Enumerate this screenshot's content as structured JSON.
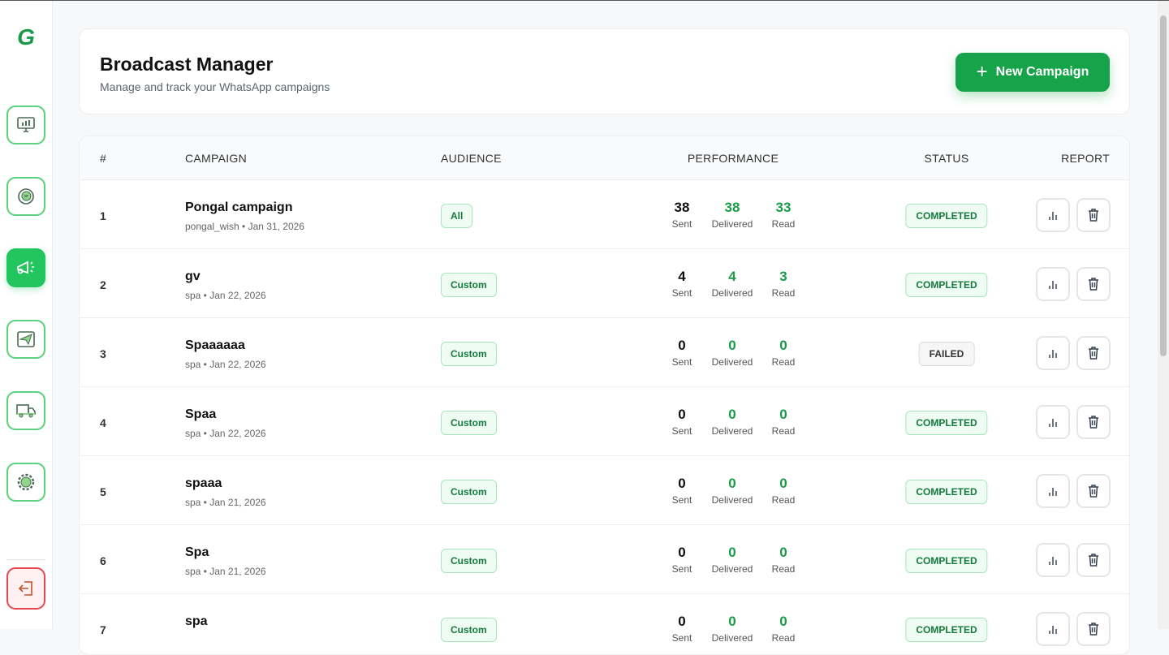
{
  "app": {
    "logo": "G"
  },
  "sidebar": {
    "items": [
      {
        "icon": "dashboard-icon"
      },
      {
        "icon": "chat-icon"
      },
      {
        "icon": "megaphone-icon",
        "active": true
      },
      {
        "icon": "send-icon"
      },
      {
        "icon": "truck-icon"
      },
      {
        "icon": "settings-icon"
      }
    ],
    "logout": {
      "icon": "logout-icon"
    }
  },
  "header": {
    "title": "Broadcast Manager",
    "subtitle": "Manage and track your WhatsApp campaigns",
    "new_campaign": "New Campaign"
  },
  "table": {
    "columns": {
      "num": "#",
      "campaign": "CAMPAIGN",
      "audience": "AUDIENCE",
      "performance": "PERFORMANCE",
      "status": "STATUS",
      "report": "REPORT"
    },
    "metric_labels": {
      "sent": "Sent",
      "delivered": "Delivered",
      "read": "Read"
    },
    "rows": [
      {
        "num": "1",
        "name": "Pongal campaign",
        "meta": "pongal_wish • Jan 31, 2026",
        "audience": "All",
        "sent": "38",
        "delivered": "38",
        "read": "33",
        "status": "COMPLETED"
      },
      {
        "num": "2",
        "name": "gv",
        "meta": "spa • Jan 22, 2026",
        "audience": "Custom",
        "sent": "4",
        "delivered": "4",
        "read": "3",
        "status": "COMPLETED"
      },
      {
        "num": "3",
        "name": "Spaaaaaa",
        "meta": "spa • Jan 22, 2026",
        "audience": "Custom",
        "sent": "0",
        "delivered": "0",
        "read": "0",
        "status": "FAILED"
      },
      {
        "num": "4",
        "name": "Spaa",
        "meta": "spa • Jan 22, 2026",
        "audience": "Custom",
        "sent": "0",
        "delivered": "0",
        "read": "0",
        "status": "COMPLETED"
      },
      {
        "num": "5",
        "name": "spaaa",
        "meta": "spa • Jan 21, 2026",
        "audience": "Custom",
        "sent": "0",
        "delivered": "0",
        "read": "0",
        "status": "COMPLETED"
      },
      {
        "num": "6",
        "name": "Spa",
        "meta": "spa • Jan 21, 2026",
        "audience": "Custom",
        "sent": "0",
        "delivered": "0",
        "read": "0",
        "status": "COMPLETED"
      },
      {
        "num": "7",
        "name": "spa",
        "meta": "",
        "audience": "Custom",
        "sent": "0",
        "delivered": "0",
        "read": "0",
        "status": "COMPLETED"
      }
    ]
  },
  "colors": {
    "accent": "#16a34a",
    "nav_border": "#5ad27e",
    "danger": "#e5484d"
  }
}
